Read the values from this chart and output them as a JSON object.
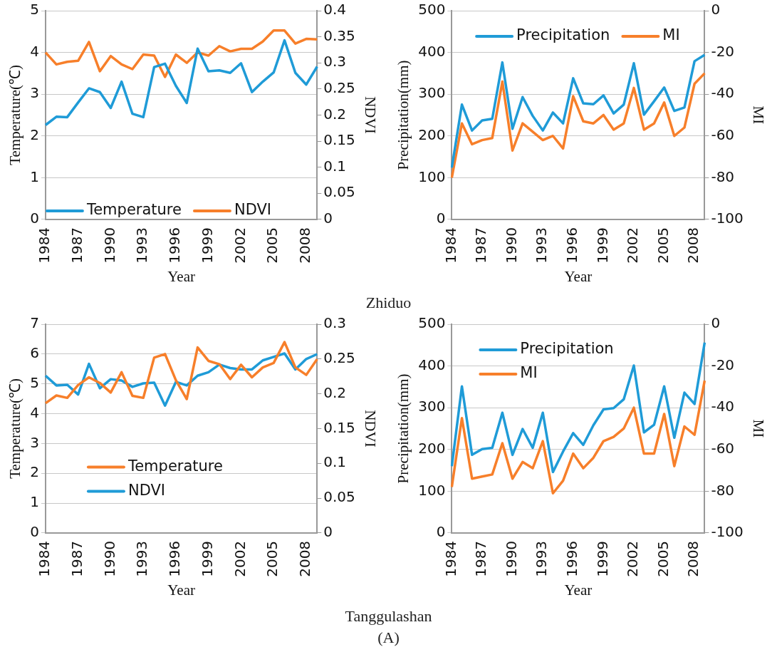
{
  "chart_data": [
    {
      "type": "line",
      "xlabel": "Year",
      "ylabel": "Temperature(℃)",
      "y2label": "NDVI",
      "annotations": [
        "Zhiduo"
      ],
      "categories": [
        "1984",
        null,
        null,
        "1987",
        null,
        null,
        "1990",
        null,
        null,
        "1993",
        null,
        null,
        "1996",
        null,
        null,
        "1999",
        null,
        null,
        "2002",
        null,
        null,
        "2005",
        null,
        null,
        "2008",
        null
      ],
      "series": [
        {
          "name": "Temperature",
          "color": "#1f9bd7",
          "values": [
            2.26,
            2.46,
            2.45,
            2.8,
            3.14,
            3.05,
            2.67,
            3.3,
            2.53,
            2.45,
            3.65,
            3.73,
            3.2,
            2.79,
            4.09,
            3.55,
            3.57,
            3.51,
            3.74,
            3.05,
            3.3,
            3.52,
            4.29,
            3.51,
            3.23,
            3.66
          ]
        },
        {
          "name": "NDVI",
          "color": "#f77f2a",
          "axis": "y2",
          "values": [
            0.32,
            0.297,
            0.302,
            0.304,
            0.34,
            0.284,
            0.313,
            0.297,
            0.288,
            0.316,
            0.314,
            0.273,
            0.316,
            0.3,
            0.32,
            0.314,
            0.332,
            0.322,
            0.327,
            0.327,
            0.341,
            0.362,
            0.362,
            0.337,
            0.346,
            0.345
          ]
        }
      ],
      "ylim": [
        0,
        5
      ],
      "yticks": [
        0,
        1,
        2,
        3,
        4,
        5
      ],
      "y2lim": [
        0,
        0.4
      ],
      "y2ticks": [
        0,
        0.05,
        0.1,
        0.15,
        0.2,
        0.25,
        0.3,
        0.35,
        0.4
      ],
      "grid": "y",
      "legend": "bottom left",
      "marker": "none",
      "line_style": "solid"
    },
    {
      "type": "line",
      "xlabel": "Year",
      "ylabel": "Precipitation(mm)",
      "y2label": "MI",
      "categories": [
        "1984",
        null,
        null,
        "1987",
        null,
        null,
        "1990",
        null,
        null,
        "1993",
        null,
        null,
        "1996",
        null,
        null,
        "1999",
        null,
        null,
        "2002",
        null,
        null,
        "2005",
        null,
        null,
        "2008",
        null
      ],
      "series": [
        {
          "name": "Precipitation",
          "color": "#1f9bd7",
          "values": [
            124,
            275,
            213,
            237,
            241,
            376,
            217,
            293,
            248,
            213,
            256,
            230,
            338,
            278,
            276,
            297,
            254,
            275,
            374,
            251,
            283,
            316,
            260,
            268,
            379,
            394
          ]
        },
        {
          "name": "MI",
          "color": "#f77f2a",
          "axis": "y2",
          "values": [
            -80,
            -54,
            -64,
            -62,
            -61,
            -34,
            -67,
            -54,
            -58,
            -62,
            -60,
            -66,
            -41,
            -53,
            -54,
            -50,
            -57,
            -54,
            -37,
            -57,
            -54,
            -44,
            -60,
            -56,
            -35,
            -30
          ]
        }
      ],
      "ylim": [
        0,
        500
      ],
      "yticks": [
        0,
        100,
        200,
        300,
        400,
        500
      ],
      "y2lim": [
        -100,
        0
      ],
      "y2ticks": [
        -100,
        -80,
        -60,
        -40,
        -20,
        0
      ],
      "grid": "y",
      "legend": "top",
      "marker": "none",
      "line_style": "solid"
    },
    {
      "type": "line",
      "xlabel": "Year",
      "ylabel": "Temperature(℃)",
      "y2label": "NDVI",
      "annotations": [
        "Tanggulashan",
        "(A)"
      ],
      "categories": [
        "1984",
        null,
        null,
        "1987",
        null,
        null,
        "1990",
        null,
        null,
        "1993",
        null,
        null,
        "1996",
        null,
        null,
        "1999",
        null,
        null,
        "2002",
        null,
        null,
        "2005",
        null,
        null,
        "2008",
        null
      ],
      "series": [
        {
          "name": "Temperature",
          "color": "#f77f2a",
          "values": [
            4.35,
            4.61,
            4.53,
            4.96,
            5.22,
            5.03,
            4.71,
            5.39,
            4.6,
            4.53,
            5.88,
            6.0,
            5.12,
            4.49,
            6.22,
            5.77,
            5.66,
            5.16,
            5.64,
            5.22,
            5.55,
            5.7,
            6.4,
            5.55,
            5.3,
            5.83
          ]
        },
        {
          "name": "NDVI",
          "color": "#1f9bd7",
          "axis": "y2",
          "values": [
            0.226,
            0.212,
            0.213,
            0.199,
            0.243,
            0.208,
            0.221,
            0.219,
            0.21,
            0.215,
            0.216,
            0.183,
            0.217,
            0.212,
            0.226,
            0.231,
            0.242,
            0.237,
            0.235,
            0.235,
            0.248,
            0.253,
            0.258,
            0.235,
            0.25,
            0.257
          ]
        }
      ],
      "ylim": [
        0,
        7
      ],
      "yticks": [
        0,
        1,
        2,
        3,
        4,
        5,
        6,
        7
      ],
      "y2lim": [
        0,
        0.3
      ],
      "y2ticks": [
        0,
        0.05,
        0.1,
        0.15,
        0.2,
        0.25,
        0.3
      ],
      "grid": "y",
      "legend": "left",
      "marker": "none",
      "line_style": "solid"
    },
    {
      "type": "line",
      "xlabel": "Year",
      "ylabel": "Precipitation(mm)",
      "y2label": "MI",
      "categories": [
        "1984",
        null,
        null,
        "1987",
        null,
        null,
        "1990",
        null,
        null,
        "1993",
        null,
        null,
        "1996",
        null,
        null,
        "1999",
        null,
        null,
        "2002",
        null,
        null,
        "2005",
        null,
        null,
        "2008",
        null
      ],
      "series": [
        {
          "name": "Precipitation",
          "color": "#1f9bd7",
          "values": [
            160,
            351,
            187,
            201,
            204,
            288,
            187,
            249,
            204,
            288,
            146,
            195,
            239,
            211,
            258,
            296,
            299,
            320,
            401,
            241,
            259,
            351,
            228,
            336,
            309,
            456
          ]
        },
        {
          "name": "MI",
          "color": "#f77f2a",
          "axis": "y2",
          "values": [
            -78,
            -45,
            -74,
            -73,
            -72,
            -57,
            -74,
            -66,
            -69,
            -56,
            -81,
            -75,
            -62,
            -69,
            -64,
            -56,
            -54,
            -50,
            -40,
            -62,
            -62,
            -43,
            -68,
            -49,
            -53,
            -27
          ]
        }
      ],
      "ylim": [
        0,
        500
      ],
      "yticks": [
        0,
        100,
        200,
        300,
        400,
        500
      ],
      "y2lim": [
        -100,
        0
      ],
      "y2ticks": [
        -100,
        -80,
        -60,
        -40,
        -20,
        0
      ],
      "grid": "y",
      "legend": "top left",
      "marker": "none",
      "line_style": "solid"
    }
  ]
}
